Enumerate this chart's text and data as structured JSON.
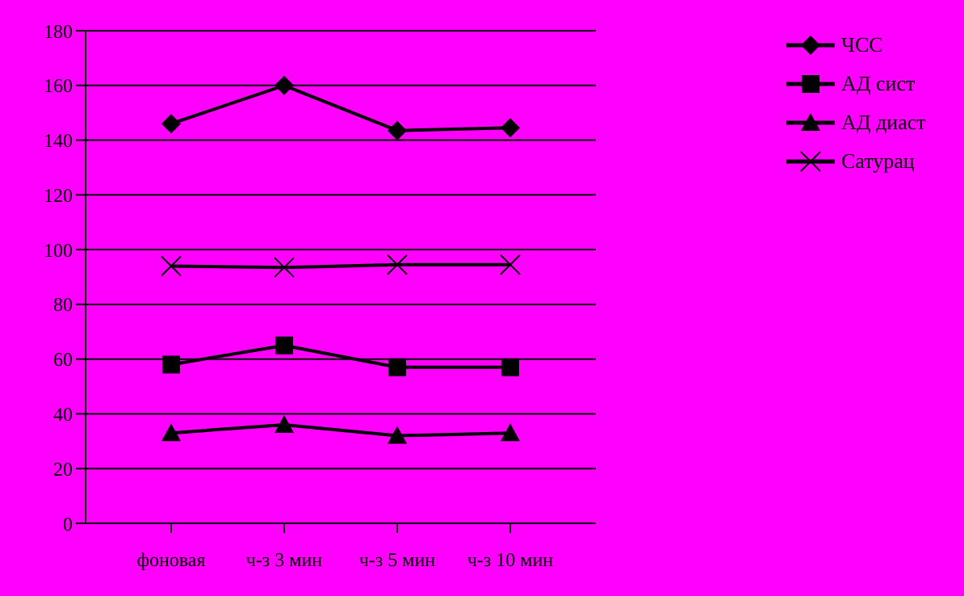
{
  "chart_data": {
    "type": "line",
    "categories": [
      "фоновая",
      "ч-з 3 мин",
      "ч-з 5 мин",
      "ч-з 10 мин"
    ],
    "series": [
      {
        "name": "ЧСС",
        "color": "#000000",
        "marker": "diamond",
        "values": [
          146,
          160,
          143.5,
          144.5
        ]
      },
      {
        "name": "АД сист",
        "color": "#000000",
        "marker": "square",
        "values": [
          58,
          65,
          57,
          57
        ]
      },
      {
        "name": "АД диаст",
        "color": "#000000",
        "marker": "triangle",
        "values": [
          33,
          36,
          32,
          33
        ]
      },
      {
        "name": "Сатурац",
        "color": "#000000",
        "marker": "cross",
        "values": [
          94,
          93.5,
          94.5,
          94.5
        ]
      }
    ],
    "ylim": [
      0,
      180
    ],
    "yticks": [
      0,
      20,
      40,
      60,
      80,
      100,
      120,
      140,
      160,
      180
    ],
    "grid": "y",
    "legend": "top right",
    "line_style": "solid"
  }
}
